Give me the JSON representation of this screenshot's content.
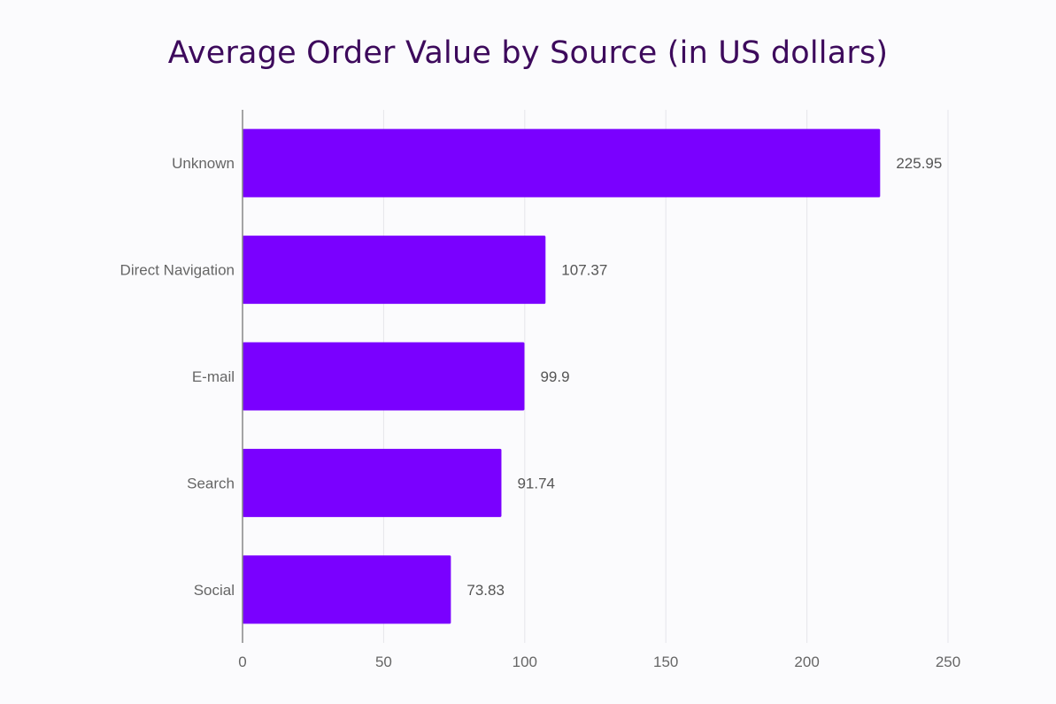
{
  "chart_data": {
    "type": "bar",
    "orientation": "horizontal",
    "title": "Average Order Value by Source (in US dollars)",
    "xlabel": "",
    "ylabel": "",
    "categories": [
      "Unknown",
      "Direct Navigation",
      "E-mail",
      "Search",
      "Social"
    ],
    "values": [
      225.95,
      107.37,
      99.9,
      91.74,
      73.83
    ],
    "data_labels": [
      "225.95",
      "107.37",
      "99.9",
      "91.74",
      "73.83"
    ],
    "xlim": [
      0,
      250
    ],
    "x_ticks": [
      0,
      50,
      100,
      150,
      200,
      250
    ],
    "x_tick_labels": [
      "0",
      "50",
      "100",
      "150",
      "200",
      "250"
    ],
    "grid": "vertical",
    "legend": "none",
    "colors": {
      "bar": "#7a00ff",
      "title": "#3d0a5c",
      "grid": "#e6e6ea",
      "axis": "#888888",
      "tick_text": "#666666",
      "background": "#fbfbfd"
    }
  }
}
